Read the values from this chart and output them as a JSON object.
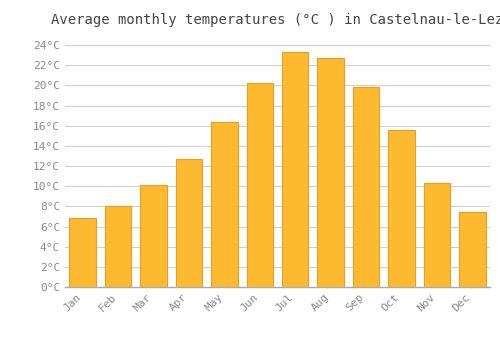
{
  "months": [
    "Jan",
    "Feb",
    "Mar",
    "Apr",
    "May",
    "Jun",
    "Jul",
    "Aug",
    "Sep",
    "Oct",
    "Nov",
    "Dec"
  ],
  "values": [
    6.8,
    8.0,
    10.1,
    12.7,
    16.4,
    20.2,
    23.3,
    22.7,
    19.8,
    15.6,
    10.3,
    7.4
  ],
  "bar_color": "#FDB930",
  "bar_edge_color": "#E8A020",
  "title": "Average monthly temperatures (°C ) in Castelnau-le-Lez",
  "ylim": [
    0,
    25
  ],
  "ytick_step": 2,
  "background_color": "#ffffff",
  "plot_bg_color": "#ffffff",
  "grid_color": "#d0d0d0",
  "title_fontsize": 10,
  "tick_fontsize": 8,
  "font_family": "monospace"
}
